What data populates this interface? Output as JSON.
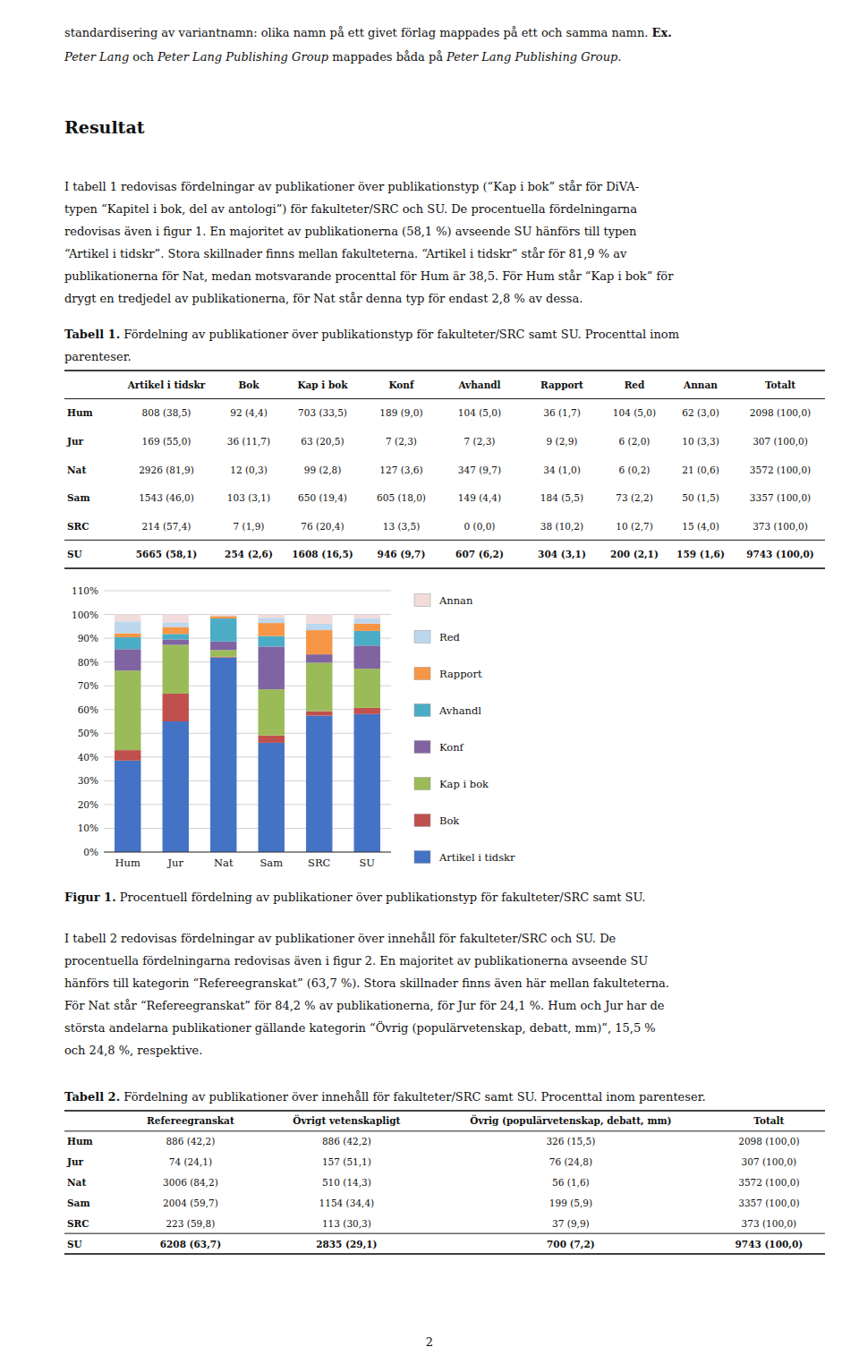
{
  "chart_data": {
    "type": "bar",
    "stacked": true,
    "categories": [
      "Hum",
      "Jur",
      "Nat",
      "Sam",
      "SRC",
      "SU"
    ],
    "series": [
      {
        "name": "Artikel i tidskr",
        "color": "#4472C4",
        "values": [
          38.5,
          55.0,
          81.9,
          46.0,
          57.4,
          58.1
        ]
      },
      {
        "name": "Bok",
        "color": "#C0504D",
        "values": [
          4.4,
          11.7,
          0.3,
          3.1,
          1.9,
          2.6
        ]
      },
      {
        "name": "Kap i bok",
        "color": "#9BBB59",
        "values": [
          33.5,
          20.5,
          2.8,
          19.4,
          20.4,
          16.5
        ]
      },
      {
        "name": "Konf",
        "color": "#8064A2",
        "values": [
          9.0,
          2.3,
          3.6,
          18.0,
          3.5,
          9.7
        ]
      },
      {
        "name": "Avhandl",
        "color": "#4BACC6",
        "values": [
          5.0,
          2.3,
          9.7,
          4.4,
          0.0,
          6.2
        ]
      },
      {
        "name": "Rapport",
        "color": "#F79646",
        "values": [
          1.7,
          2.9,
          1.0,
          5.5,
          10.2,
          3.1
        ]
      },
      {
        "name": "Red",
        "color": "#BDD7EE",
        "values": [
          5.0,
          2.0,
          0.2,
          2.2,
          2.7,
          2.1
        ]
      },
      {
        "name": "Annan",
        "color": "#F2DCDB",
        "values": [
          3.0,
          3.3,
          0.6,
          1.5,
          4.0,
          1.6
        ]
      }
    ],
    "ylim": [
      0,
      110
    ],
    "yticks": [
      {
        "value": 0,
        "label": "0%"
      },
      {
        "value": 10,
        "label": "10%"
      },
      {
        "value": 20,
        "label": "20%"
      },
      {
        "value": 30,
        "label": "30%"
      },
      {
        "value": 40,
        "label": "40%"
      },
      {
        "value": 50,
        "label": "50%"
      },
      {
        "value": 60,
        "label": "60%"
      },
      {
        "value": 70,
        "label": "70%"
      },
      {
        "value": 80,
        "label": "80%"
      },
      {
        "value": 90,
        "label": "90%"
      },
      {
        "value": 100,
        "label": "100%"
      },
      {
        "value": 110,
        "label": "110%"
      }
    ],
    "grid": true,
    "legend": "right"
  },
  "page": {
    "intro": [
      [
        {
          "text": "standardisering av variantnamn: olika namn på ett givet förlag mappades på ett och samma namn. "
        },
        {
          "text": "Ex.",
          "style": "bold"
        }
      ],
      [
        {
          "text": "Peter Lang",
          "style": "italic"
        },
        {
          "text": " och "
        },
        {
          "text": "Peter Lang Publishing Group",
          "style": "italic"
        },
        {
          "text": " mappades båda på "
        },
        {
          "text": "Peter Lang Publishing Group",
          "style": "italic"
        },
        {
          "text": "."
        }
      ]
    ],
    "heading": "Resultat",
    "paragraph1": [
      "I tabell 1 redovisas fördelningar av publikationer över publikationstyp (“Kap i bok” står för DiVA-",
      "typen “Kapitel i bok, del av antologi”) för fakulteter/SRC och SU. De procentuella fördelningarna",
      "redovisas även i figur 1. En majoritet av publikationerna (58,1 %) avseende SU hänförs till typen",
      "“Artikel i tidskr”. Stora skillnader finns mellan fakulteterna. “Artikel i tidskr” står för 81,9 % av",
      "publikationerna för Nat, medan motsvarande procenttal för Hum är 38,5. För Hum står “Kap i bok” för",
      "drygt en tredjedel av publikationerna, för Nat står denna typ för endast 2,8 % av dessa."
    ],
    "table1_caption": [
      [
        {
          "text": "Tabell 1.",
          "style": "bold"
        },
        {
          "text": " Fördelning av publikationer över publikationstyp för fakulteter/SRC samt SU. Procenttal inom"
        }
      ],
      [
        {
          "text": "parenteser."
        }
      ]
    ],
    "table1": {
      "headers": [
        "Artikel i tidskr",
        "Bok",
        "Kap i bok",
        "Konf",
        "Avhandl",
        "Rapport",
        "Red",
        "Annan",
        "Totalt"
      ],
      "rows": [
        [
          "Hum",
          "808 (38,5)",
          "92 (4,4)",
          "703 (33,5)",
          "189 (9,0)",
          "104 (5,0)",
          "36 (1,7)",
          "104 (5,0)",
          "62 (3,0)",
          "2098 (100,0)"
        ],
        [
          "Jur",
          "169 (55,0)",
          "36 (11,7)",
          "63 (20,5)",
          "7 (2,3)",
          "7 (2,3)",
          "9 (2,9)",
          "6 (2,0)",
          "10 (3,3)",
          "307 (100,0)"
        ],
        [
          "Nat",
          "2926 (81,9)",
          "12 (0,3)",
          "99 (2,8)",
          "127 (3,6)",
          "347 (9,7)",
          "34 (1,0)",
          "6 (0,2)",
          "21 (0,6)",
          "3572 (100,0)"
        ],
        [
          "Sam",
          "1543 (46,0)",
          "103 (3,1)",
          "650 (19,4)",
          "605 (18,0)",
          "149 (4,4)",
          "184 (5,5)",
          "73 (2,2)",
          "50 (1,5)",
          "3357 (100,0)"
        ],
        [
          "SRC",
          "214 (57,4)",
          "7 (1,9)",
          "76 (20,4)",
          "13 (3,5)",
          "0 (0,0)",
          "38 (10,2)",
          "10 (2,7)",
          "15 (4,0)",
          "373 (100,0)"
        ],
        [
          "SU",
          "5665 (58,1)",
          "254 (2,6)",
          "1608 (16,5)",
          "946 (9,7)",
          "607 (6,2)",
          "304 (3,1)",
          "200 (2,1)",
          "159 (1,6)",
          "9743 (100,0)"
        ]
      ]
    },
    "figure_caption": [
      {
        "text": "Figur 1.",
        "style": "bold"
      },
      {
        "text": " Procentuell fördelning av publikationer över publikationstyp för fakulteter/SRC samt SU."
      }
    ],
    "paragraph2": [
      "I tabell 2 redovisas fördelningar av publikationer över innehåll för fakulteter/SRC och SU. De",
      "procentuella fördelningarna redovisas även i figur 2. En majoritet av publikationerna avseende SU",
      "hänförs till kategorin “Refereegranskat” (63,7 %). Stora skillnader finns även här mellan fakulteterna.",
      "För Nat står “Refereegranskat” för 84,2 % av publikationerna, för Jur för 24,1 %. Hum och Jur har de",
      "största andelarna publikationer gällande kategorin “Övrig (populärvetenskap, debatt, mm)”, 15,5 %",
      "och 24,8 %, respektive."
    ],
    "table2_caption": [
      [
        {
          "text": "Tabell 2.",
          "style": "bold"
        },
        {
          "text": " Fördelning av publikationer över innehåll för fakulteter/SRC samt SU. Procenttal inom parenteser."
        }
      ]
    ],
    "table2": {
      "headers": [
        "Refereegranskat",
        "Övrigt vetenskapligt",
        "Övrig (populärvetenskap, debatt, mm)",
        "Totalt"
      ],
      "rows": [
        [
          "Hum",
          "886 (42,2)",
          "886 (42,2)",
          "326 (15,5)",
          "2098 (100,0)"
        ],
        [
          "Jur",
          "74 (24,1)",
          "157 (51,1)",
          "76 (24,8)",
          "307 (100,0)"
        ],
        [
          "Nat",
          "3006 (84,2)",
          "510 (14,3)",
          "56 (1,6)",
          "3572 (100,0)"
        ],
        [
          "Sam",
          "2004 (59,7)",
          "1154 (34,4)",
          "199 (5,9)",
          "3357 (100,0)"
        ],
        [
          "SRC",
          "223 (59,8)",
          "113 (30,3)",
          "37 (9,9)",
          "373 (100,0)"
        ],
        [
          "SU",
          "6208 (63,7)",
          "2835 (29,1)",
          "700 (7,2)",
          "9743 (100,0)"
        ]
      ]
    },
    "page_number": "2"
  }
}
